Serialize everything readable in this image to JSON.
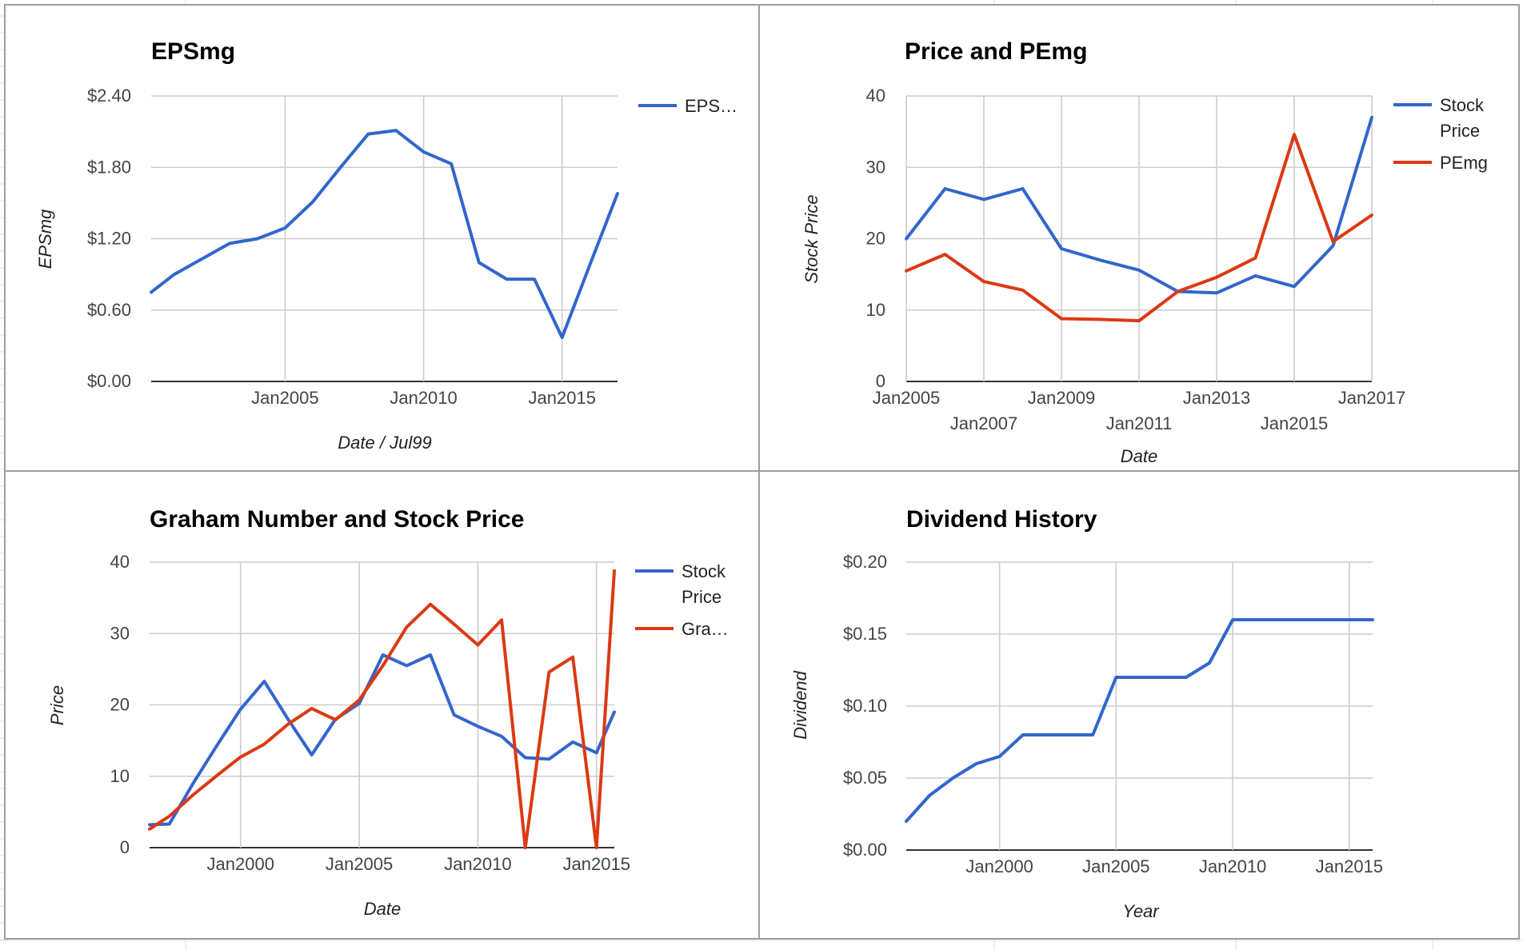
{
  "colors": {
    "blue": "#3366cc",
    "red": "#dc3912",
    "grid": "#cccccc",
    "panel_border": "#9e9e9e"
  },
  "chart_data": [
    {
      "type": "line",
      "title": "EPSmg",
      "xlabel": "Date / Jul99",
      "ylabel": "EPSmg",
      "x_ticks": [
        "Jan2005",
        "Jan2010",
        "Jan2015"
      ],
      "y_ticks": [
        "$0.00",
        "$0.60",
        "$1.20",
        "$1.80",
        "$2.40"
      ],
      "ylim": [
        0,
        2.4
      ],
      "xlim": [
        "2000-03",
        "2017-01"
      ],
      "grid": true,
      "legend": "right",
      "series": [
        {
          "name": "EPS…",
          "color": "#3366cc",
          "x": [
            "2000-03",
            "2001-01",
            "2002-01",
            "2003-01",
            "2004-01",
            "2005-01",
            "2006-01",
            "2007-01",
            "2008-01",
            "2009-01",
            "2010-01",
            "2011-01",
            "2012-01",
            "2013-01",
            "2014-01",
            "2015-01",
            "2016-01",
            "2017-01"
          ],
          "values": [
            0.75,
            0.9,
            1.03,
            1.16,
            1.2,
            1.29,
            1.51,
            1.8,
            2.08,
            2.11,
            1.93,
            1.83,
            1.0,
            0.86,
            0.86,
            0.37,
            0.98,
            1.58
          ]
        }
      ]
    },
    {
      "type": "line",
      "title": "Price and PEmg",
      "xlabel": "Date",
      "ylabel": "Stock Price",
      "x_ticks": [
        "Jan2005",
        "Jan2007",
        "Jan2009",
        "Jan2011",
        "Jan2013",
        "Jan2015",
        "Jan2017"
      ],
      "y_ticks": [
        "0",
        "10",
        "20",
        "30",
        "40"
      ],
      "ylim": [
        0,
        40
      ],
      "xlim": [
        "2005-01",
        "2017-01"
      ],
      "grid": true,
      "legend": "right",
      "series": [
        {
          "name": "Stock Price",
          "color": "#3366cc",
          "x": [
            "2005-01",
            "2006-01",
            "2007-01",
            "2008-01",
            "2009-01",
            "2010-01",
            "2011-01",
            "2012-01",
            "2013-01",
            "2014-01",
            "2015-01",
            "2016-01",
            "2017-01"
          ],
          "values": [
            20,
            27,
            25.5,
            27,
            18.6,
            17,
            15.6,
            12.6,
            12.4,
            14.8,
            13.3,
            19,
            37
          ]
        },
        {
          "name": "PEmg",
          "color": "#dc3912",
          "x": [
            "2005-01",
            "2006-01",
            "2007-01",
            "2008-01",
            "2009-01",
            "2010-01",
            "2011-01",
            "2012-01",
            "2013-01",
            "2014-01",
            "2015-01",
            "2016-01",
            "2017-01"
          ],
          "values": [
            15.5,
            17.8,
            14,
            12.8,
            8.8,
            8.7,
            8.5,
            12.6,
            14.6,
            17.3,
            34.6,
            19.6,
            23.3
          ]
        }
      ]
    },
    {
      "type": "line",
      "title": "Graham Number and Stock Price",
      "xlabel": "Date",
      "ylabel": "Price",
      "x_ticks": [
        "Jan2000",
        "Jan2005",
        "Jan2010",
        "Jan2015"
      ],
      "y_ticks": [
        "0",
        "10",
        "20",
        "30",
        "40"
      ],
      "ylim": [
        0,
        40
      ],
      "xlim": [
        "1996-03",
        "2015-10"
      ],
      "grid": true,
      "legend": "right",
      "series": [
        {
          "name": "Stock Price",
          "color": "#3366cc",
          "x": [
            "1996-03",
            "1997-01",
            "1998-01",
            "1999-01",
            "2000-01",
            "2001-01",
            "2002-01",
            "2003-01",
            "2004-01",
            "2005-01",
            "2006-01",
            "2007-01",
            "2008-01",
            "2009-01",
            "2010-01",
            "2011-01",
            "2012-01",
            "2013-01",
            "2014-01",
            "2015-01",
            "2015-10"
          ],
          "values": [
            3.2,
            3.3,
            9,
            14.3,
            19.4,
            23.3,
            18,
            13,
            18,
            20.2,
            27,
            25.5,
            27,
            18.6,
            17,
            15.6,
            12.6,
            12.4,
            14.8,
            13.3,
            19
          ]
        },
        {
          "name": "Gra…",
          "color": "#dc3912",
          "x": [
            "1996-03",
            "1997-01",
            "1998-01",
            "1999-01",
            "2000-01",
            "2001-01",
            "2002-01",
            "2003-01",
            "2004-01",
            "2005-01",
            "2006-01",
            "2007-01",
            "2008-01",
            "2009-01",
            "2010-01",
            "2011-01",
            "2012-01",
            "2013-01",
            "2014-01",
            "2015-01",
            "2015-10"
          ],
          "values": [
            2.6,
            4.4,
            7.4,
            10.1,
            12.7,
            14.5,
            17.3,
            19.5,
            17.9,
            20.7,
            25.5,
            30.9,
            34.1,
            31.3,
            28.4,
            31.9,
            0,
            24.6,
            26.7,
            0,
            38.8
          ]
        }
      ]
    },
    {
      "type": "line",
      "title": "Dividend History",
      "xlabel": "Year",
      "ylabel": "Dividend",
      "x_ticks": [
        "Jan2000",
        "Jan2005",
        "Jan2010",
        "Jan2015"
      ],
      "y_ticks": [
        "$0.00",
        "$0.05",
        "$0.10",
        "$0.15",
        "$0.20"
      ],
      "ylim": [
        0,
        0.2
      ],
      "xlim": [
        "1996-01",
        "2016-01"
      ],
      "grid": true,
      "legend": "none",
      "series": [
        {
          "color": "#3366cc",
          "x": [
            "1996-01",
            "1997-01",
            "1998-01",
            "1999-01",
            "2000-01",
            "2001-01",
            "2002-01",
            "2003-01",
            "2004-01",
            "2005-01",
            "2006-01",
            "2007-01",
            "2008-01",
            "2009-01",
            "2010-01",
            "2011-01",
            "2012-01",
            "2013-01",
            "2014-01",
            "2015-01",
            "2016-01"
          ],
          "values": [
            0.02,
            0.038,
            0.05,
            0.06,
            0.065,
            0.08,
            0.08,
            0.08,
            0.08,
            0.12,
            0.12,
            0.12,
            0.12,
            0.13,
            0.16,
            0.16,
            0.16,
            0.16,
            0.16,
            0.16,
            0.16
          ]
        }
      ]
    }
  ]
}
